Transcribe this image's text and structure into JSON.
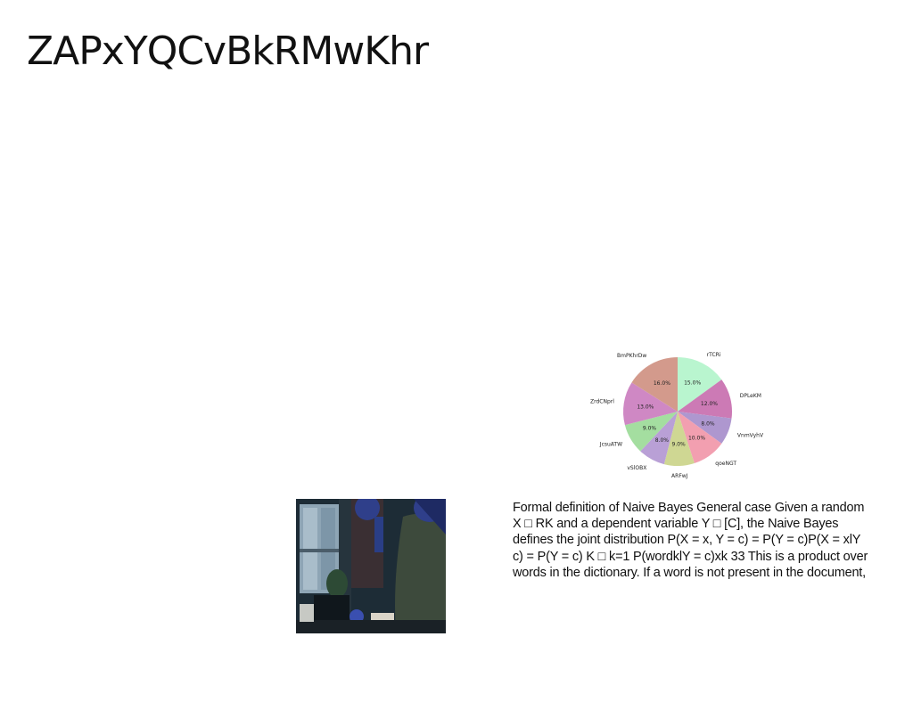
{
  "title": "ZAPxYQCvBkRMwKhr",
  "photo": {
    "colors": {
      "window": "#8ea5b5",
      "wall": "#1d2c36",
      "figure_skin": "#2f3f8a",
      "coat": "#3d4a3c",
      "desk": "#1a2126"
    }
  },
  "body_text": {
    "lines": [
      "Formal definition of Naive Bayes General case Given a random",
      "X □ RK and a dependent variable Y □ [C], the Naive Bayes",
      "defines the joint distribution P(X = x, Y = c) = P(Y = c)P(X = xlY",
      "c) = P(Y = c) K □ k=1 P(wordklY = c)xk 33 This is a product over",
      "words in the dictionary. If a word is not present in the document,"
    ]
  },
  "chart_data": {
    "type": "pie",
    "title": "",
    "start_angle_deg": 90,
    "direction": "clockwise",
    "slices": [
      {
        "label": "rTCRi",
        "value": 15.0,
        "pct_label": "15.0%",
        "color": "#b9f5cf"
      },
      {
        "label": "DPLeKM",
        "value": 12.0,
        "pct_label": "12.0%",
        "color": "#cc7ab5"
      },
      {
        "label": "VnmVyhV",
        "value": 8.0,
        "pct_label": "8.0%",
        "color": "#ae97cf"
      },
      {
        "label": "qoeNGT",
        "value": 10.0,
        "pct_label": "10.0%",
        "color": "#f29fb0"
      },
      {
        "label": "ARFwJ",
        "value": 9.0,
        "pct_label": "9.0%",
        "color": "#cfd793"
      },
      {
        "label": "vSlOBX",
        "value": 8.0,
        "pct_label": "8.0%",
        "color": "#b9a0d6"
      },
      {
        "label": "JcsuATW",
        "value": 9.0,
        "pct_label": "9.0%",
        "color": "#a4dea0"
      },
      {
        "label": "ZrdCNprl",
        "value": 13.0,
        "pct_label": "13.0%",
        "color": "#cf88c4"
      },
      {
        "label": "BmPKhrDw",
        "value": 16.0,
        "pct_label": "16.0%",
        "color": "#d39a8c"
      }
    ]
  }
}
